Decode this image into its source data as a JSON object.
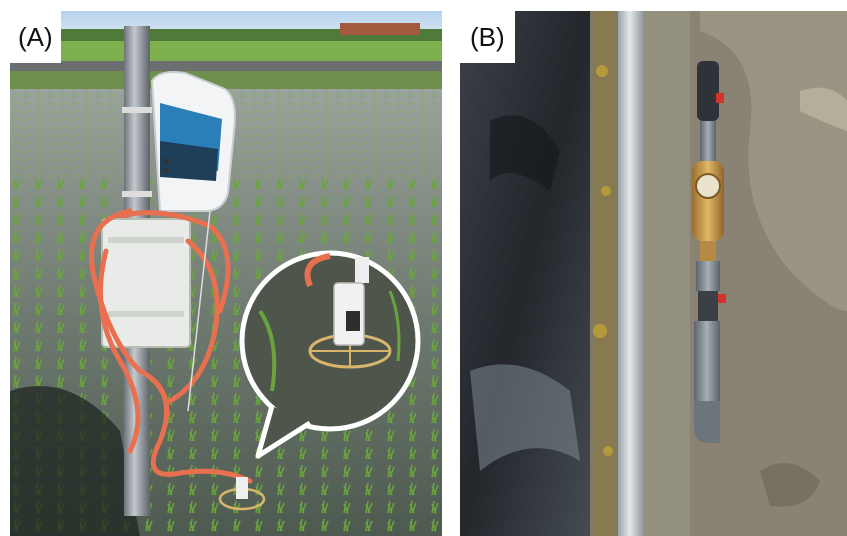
{
  "figure": {
    "panel_a_label": "(A)",
    "panel_b_label": "(B)"
  },
  "colors": {
    "paddy_water": "#6f7a70",
    "rice_green": "#5f9a3a",
    "sky": "#9fc3e4",
    "device_blue": "#2b7fb8",
    "hose_orange": "#e86f4f",
    "channel_water": "#2a2e33",
    "soil": "#8a8273",
    "meter_brass": "#c89a4e",
    "pipe_gray": "#8d959c"
  }
}
